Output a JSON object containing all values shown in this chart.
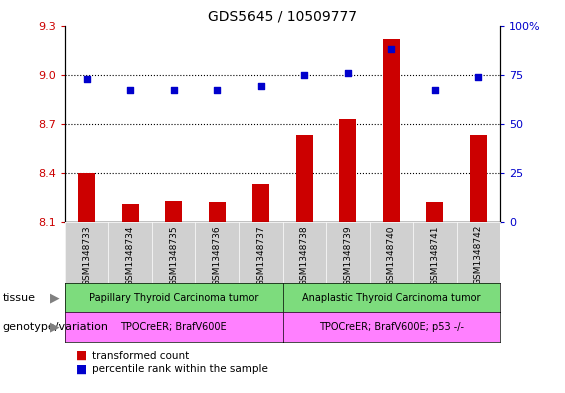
{
  "title": "GDS5645 / 10509777",
  "samples": [
    "GSM1348733",
    "GSM1348734",
    "GSM1348735",
    "GSM1348736",
    "GSM1348737",
    "GSM1348738",
    "GSM1348739",
    "GSM1348740",
    "GSM1348741",
    "GSM1348742"
  ],
  "bar_values": [
    8.4,
    8.21,
    8.23,
    8.22,
    8.33,
    8.63,
    8.73,
    9.22,
    8.22,
    8.63
  ],
  "blue_pct": [
    73,
    67,
    67,
    67,
    69,
    75,
    76,
    88,
    67,
    74
  ],
  "ylim_left": [
    8.1,
    9.3
  ],
  "yticks_left": [
    8.1,
    8.4,
    8.7,
    9.0,
    9.3
  ],
  "yticks_right": [
    0,
    25,
    50,
    75,
    100
  ],
  "ylim_right": [
    0,
    100
  ],
  "bar_color": "#cc0000",
  "scatter_color": "#0000cc",
  "hline_values": [
    9.0,
    8.7,
    8.4
  ],
  "tissue_group1_label": "Papillary Thyroid Carcinoma tumor",
  "tissue_group2_label": "Anaplastic Thyroid Carcinoma tumor",
  "genotype_group1_label": "TPOCreER; BrafV600E",
  "genotype_group2_label": "TPOCreER; BrafV600E; p53 -/-",
  "tissue_row_label": "tissue",
  "genotype_row_label": "genotype/variation",
  "legend_bar_label": "transformed count",
  "legend_scatter_label": "percentile rank within the sample",
  "tissue_color1": "#7ddc7d",
  "tissue_color2": "#7ddc7d",
  "genotype_color1": "#ff80ff",
  "genotype_color2": "#ff80ff",
  "sample_bg_color": "#d0d0d0",
  "group1_count": 5,
  "group2_count": 5,
  "bar_width": 0.4
}
